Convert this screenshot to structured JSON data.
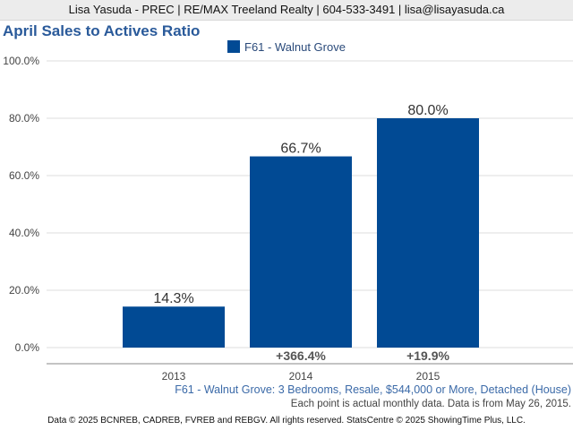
{
  "header": {
    "contact": "Lisa Yasuda - PREC | RE/MAX Treeland Realty | 604-533-3491 | lisa@lisayasuda.ca"
  },
  "footer": {
    "subtitle": "F61 - Walnut Grove: 3 Bedrooms, Resale, $544,000 or More, Detached (House)",
    "note": "Each point is actual monthly data. Data is from May 26, 2015.",
    "copyright": "Data © 2025 BCNREB, CADREB, FVREB and REBGV. All rights reserved. StatsCentre © 2025 ShowingTime Plus, LLC."
  },
  "colors": {
    "bar": "#014a94",
    "title": "#2a5a9a",
    "gridline": "#dddddd"
  },
  "chart_data": {
    "type": "bar",
    "title": "April Sales to Actives Ratio",
    "categories": [
      "2013",
      "2014",
      "2015"
    ],
    "series": [
      {
        "name": "F61 - Walnut Grove",
        "values": [
          14.3,
          66.7,
          80.0
        ],
        "value_labels": [
          "14.3%",
          "66.7%",
          "80.0%"
        ]
      }
    ],
    "change_labels": [
      "",
      "+366.4%",
      "+19.9%"
    ],
    "ylim": [
      0,
      100
    ],
    "yticks": [
      0,
      20,
      40,
      60,
      80,
      100
    ],
    "ytick_labels": [
      "0.0%",
      "20.0%",
      "40.0%",
      "60.0%",
      "80.0%",
      "100.0%"
    ],
    "grid": true,
    "legend_position": "top-center",
    "xlabel": "",
    "ylabel": ""
  }
}
